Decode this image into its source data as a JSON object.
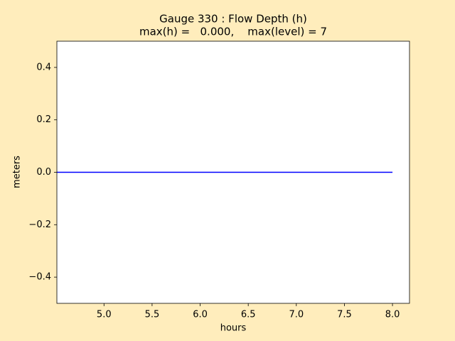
{
  "chart_data": {
    "type": "line",
    "title": "Gauge 330 : Flow Depth (h)",
    "subtitle": "max(h) =   0.000,    max(level) = 7",
    "x_label": "hours",
    "y_label": "meters",
    "x": [
      4.51,
      8.0
    ],
    "series": [
      {
        "name": "h",
        "color": "#0000ff",
        "values": [
          0,
          0
        ]
      }
    ],
    "xlim": [
      4.51,
      8.177
    ],
    "ylim": [
      -0.5,
      0.5
    ],
    "xticks": [
      {
        "value": 5,
        "label": "5.0"
      },
      {
        "value": 5.5,
        "label": "5.5"
      },
      {
        "value": 6,
        "label": "6.0"
      },
      {
        "value": 6.5,
        "label": "6.5"
      },
      {
        "value": 7,
        "label": "7.0"
      },
      {
        "value": 7.5,
        "label": "7.5"
      },
      {
        "value": 8,
        "label": "8.0"
      }
    ],
    "yticks": [
      {
        "value": -0.4,
        "label": "−0.4"
      },
      {
        "value": -0.2,
        "label": "−0.2"
      },
      {
        "value": 0,
        "label": "0.0"
      },
      {
        "value": 0.2,
        "label": "0.2"
      },
      {
        "value": 0.4,
        "label": "0.4"
      }
    ],
    "grid": false
  }
}
